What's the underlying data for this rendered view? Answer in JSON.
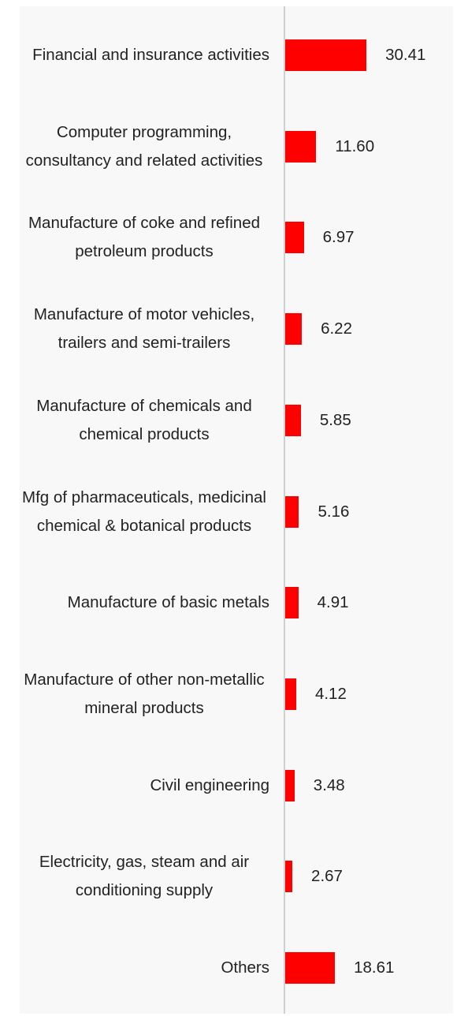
{
  "chart_data": {
    "type": "bar",
    "orientation": "horizontal",
    "categories": [
      "Financial and insurance activities",
      "Computer programming, consultancy and related activities",
      "Manufacture of coke and refined petroleum products",
      "Manufacture of motor vehicles, trailers and semi-trailers",
      "Manufacture of chemicals and chemical products",
      "Mfg of pharmaceuticals, medicinal chemical & botanical products",
      "Manufacture of basic metals",
      "Manufacture of other non-metallic mineral products",
      "Civil engineering",
      "Electricity, gas, steam and air conditioning supply",
      "Others"
    ],
    "values": [
      30.41,
      11.6,
      6.97,
      6.22,
      5.85,
      5.16,
      4.91,
      4.12,
      3.48,
      2.67,
      18.61
    ],
    "value_labels": [
      "30.41",
      "11.60",
      "6.97",
      "6.22",
      "5.85",
      "5.16",
      "4.91",
      "4.12",
      "3.48",
      "2.67",
      "18.61"
    ],
    "color": "#ff0000"
  }
}
